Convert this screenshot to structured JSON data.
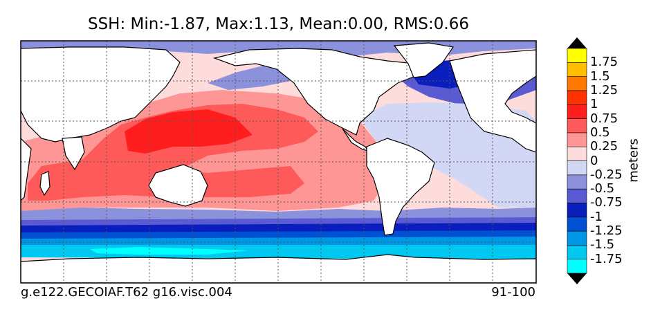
{
  "chart_data": {
    "type": "heatmap",
    "title": "SSH: Min:-1.87, Max:1.13, Mean:0.00, RMS:0.66",
    "subtitle_left": "g.e122.GECOIAF.T62 g16.visc.004",
    "subtitle_right": "91-100",
    "variable": "SSH",
    "stats": {
      "min": -1.87,
      "max": 1.13,
      "mean": 0.0,
      "rms": 0.66
    },
    "units": "meters",
    "grid": true,
    "colorbar": {
      "placement": "right",
      "extend": "both",
      "levels": [
        -2.0,
        -1.75,
        -1.5,
        -1.25,
        -1.0,
        -0.75,
        -0.5,
        -0.25,
        0,
        0.25,
        0.5,
        0.75,
        1.0,
        1.25,
        1.5,
        1.75,
        2.0
      ],
      "colors": [
        "#00ffff",
        "#00c8f0",
        "#0096e6",
        "#0050d2",
        "#0a1ebe",
        "#5a5ad2",
        "#8c91dc",
        "#d2d7f5",
        "#ffdcdc",
        "#ff9696",
        "#ff5a5a",
        "#ff1e1e",
        "#ff3200",
        "#ff7800",
        "#ffbe00",
        "#ffff00"
      ],
      "tick_labels": [
        "-1.75",
        "-1.5",
        "-1.25",
        "-1",
        "-0.75",
        "-0.5",
        "-0.25",
        "0",
        "0.25",
        "0.5",
        "0.75",
        "1",
        "1.25",
        "1.5",
        "1.75"
      ]
    }
  }
}
